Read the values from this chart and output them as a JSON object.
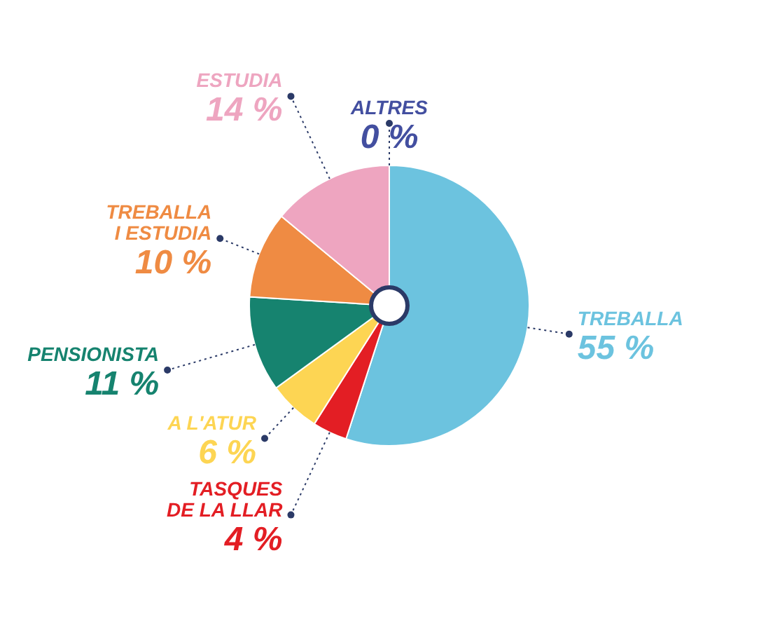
{
  "chart_data": {
    "type": "pie",
    "categories": [
      "TREBALLA",
      "TASQUES\nDE LA LLAR",
      "A L'ATUR",
      "PENSIONISTA",
      "TREBALLA\nI ESTUDIA",
      "ESTUDIA",
      "ALTRES"
    ],
    "values": [
      55,
      4,
      6,
      11,
      10,
      14,
      0
    ],
    "value_labels": [
      "55 %",
      "4 %",
      "6 %",
      "11 %",
      "10 %",
      "14 %",
      "0 %"
    ],
    "colors": [
      "#6cc3df",
      "#e31e24",
      "#fdd553",
      "#16836f",
      "#ef8b43",
      "#eea5c0",
      "#434fa0"
    ]
  }
}
